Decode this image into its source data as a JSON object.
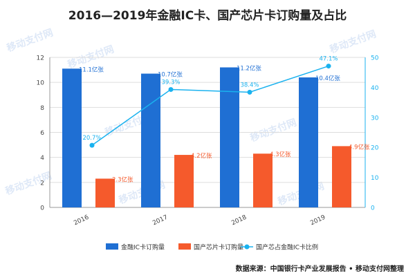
{
  "title": "2016—2019年金融IC卡、国产芯片卡订购量及占比",
  "source": "数据来源：中国银行卡产业发展报告 • 移动支付网整理",
  "watermark": "移动支付网",
  "chart_data": {
    "type": "bar",
    "categories": [
      "2016",
      "2017",
      "2018",
      "2019"
    ],
    "series": [
      {
        "name": "金融IC卡订购量",
        "kind": "bar",
        "axis": "left",
        "color": "#1f6fd3",
        "values": [
          11.1,
          10.7,
          11.2,
          10.4
        ],
        "labels": [
          "11.1亿张",
          "10.7亿张",
          "11.2亿张",
          "10.4亿张"
        ]
      },
      {
        "name": "国产芯片卡订购量",
        "kind": "bar",
        "axis": "left",
        "color": "#f55a2c",
        "values": [
          2.3,
          4.2,
          4.3,
          4.9
        ],
        "labels": [
          "2.3亿张",
          "4.2亿张",
          "4.3亿张",
          "4.9亿张"
        ]
      },
      {
        "name": "国产芯占金融IC卡比例",
        "kind": "line",
        "axis": "right",
        "color": "#1ab2ef",
        "values": [
          20.7,
          39.3,
          38.4,
          47.1
        ],
        "labels": [
          "20.7%",
          "39.3%",
          "38.4%",
          "47.1%"
        ]
      }
    ],
    "y_left": {
      "min": 0,
      "max": 12,
      "ticks": [
        0,
        2,
        4,
        6,
        8,
        10,
        12
      ]
    },
    "y_right": {
      "min": 0,
      "max": 50,
      "ticks": [
        0,
        10,
        20,
        30,
        40,
        50
      ]
    },
    "grid": true,
    "legend_position": "bottom"
  }
}
